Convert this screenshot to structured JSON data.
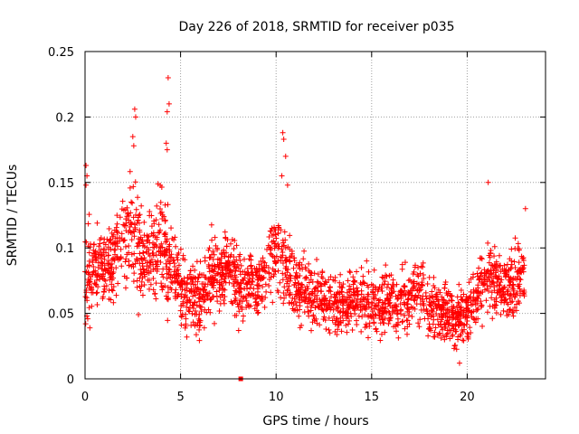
{
  "chart_data": {
    "type": "scatter",
    "title": "Day 226 of 2018, SRMTID for receiver p035",
    "xlabel": "GPS time / hours",
    "ylabel": "SRMTID / TECUs",
    "xlim": [
      0,
      24.1
    ],
    "ylim": [
      0,
      0.25
    ],
    "xticks": [
      0,
      5,
      10,
      15,
      20
    ],
    "xtick_labels": [
      "0",
      "5",
      "10",
      "15",
      "20"
    ],
    "yticks": [
      0,
      0.05,
      0.1,
      0.15,
      0.2,
      0.25
    ],
    "ytick_labels": [
      "0",
      "0.05",
      "0.1",
      "0.15",
      "0.2",
      "0.25"
    ],
    "grid": true,
    "marker": "+",
    "series_color": "#ff0000",
    "grid_color": "#a0a0a0",
    "profile": {
      "comment": "approximate local mean / spread of the scatter cloud (data units)",
      "hours": [
        0,
        0.5,
        1,
        1.5,
        2,
        2.5,
        3,
        3.5,
        4,
        4.5,
        5,
        5.5,
        6,
        6.5,
        7,
        7.5,
        8,
        8.5,
        9,
        9.5,
        10,
        10.5,
        11,
        11.5,
        12,
        12.5,
        13,
        13.5,
        14,
        14.5,
        15,
        15.5,
        16,
        16.5,
        17,
        17.5,
        18,
        18.5,
        19,
        19.5,
        20,
        20.5,
        21,
        21.5,
        22,
        22.5,
        23
      ],
      "mean": [
        0.085,
        0.08,
        0.085,
        0.09,
        0.11,
        0.115,
        0.09,
        0.095,
        0.1,
        0.085,
        0.07,
        0.065,
        0.06,
        0.075,
        0.08,
        0.09,
        0.07,
        0.075,
        0.072,
        0.085,
        0.1,
        0.08,
        0.07,
        0.065,
        0.065,
        0.06,
        0.058,
        0.057,
        0.06,
        0.062,
        0.058,
        0.056,
        0.058,
        0.055,
        0.062,
        0.07,
        0.055,
        0.052,
        0.05,
        0.045,
        0.05,
        0.065,
        0.08,
        0.075,
        0.07,
        0.075,
        0.08
      ],
      "spread": [
        0.03,
        0.022,
        0.02,
        0.02,
        0.025,
        0.028,
        0.025,
        0.025,
        0.03,
        0.022,
        0.02,
        0.018,
        0.018,
        0.02,
        0.02,
        0.02,
        0.018,
        0.018,
        0.018,
        0.02,
        0.025,
        0.02,
        0.018,
        0.016,
        0.016,
        0.015,
        0.015,
        0.015,
        0.016,
        0.016,
        0.015,
        0.015,
        0.015,
        0.015,
        0.016,
        0.018,
        0.015,
        0.015,
        0.015,
        0.015,
        0.016,
        0.018,
        0.02,
        0.02,
        0.018,
        0.02,
        0.02
      ]
    },
    "peaks": [
      {
        "x": 2.6,
        "y": 0.206
      },
      {
        "x": 2.65,
        "y": 0.2
      },
      {
        "x": 2.5,
        "y": 0.185
      },
      {
        "x": 2.55,
        "y": 0.178
      },
      {
        "x": 4.35,
        "y": 0.23
      },
      {
        "x": 4.4,
        "y": 0.21
      },
      {
        "x": 4.3,
        "y": 0.204
      },
      {
        "x": 4.25,
        "y": 0.18
      },
      {
        "x": 4.3,
        "y": 0.175
      },
      {
        "x": 10.35,
        "y": 0.188
      },
      {
        "x": 10.4,
        "y": 0.183
      },
      {
        "x": 10.5,
        "y": 0.17
      },
      {
        "x": 10.3,
        "y": 0.155
      },
      {
        "x": 10.6,
        "y": 0.148
      },
      {
        "x": 0.05,
        "y": 0.163
      },
      {
        "x": 0.1,
        "y": 0.155
      },
      {
        "x": 0.05,
        "y": 0.148
      },
      {
        "x": 21.1,
        "y": 0.15
      },
      {
        "x": 23.05,
        "y": 0.13
      },
      {
        "x": 19.6,
        "y": 0.012
      }
    ],
    "outlier_square": {
      "x": 8.15,
      "y": 0
    }
  }
}
